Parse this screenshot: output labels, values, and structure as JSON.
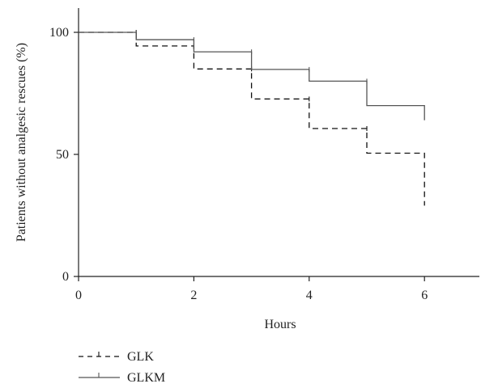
{
  "chart_data": {
    "type": "line",
    "subtype": "step (Kaplan-Meier)",
    "xlabel": "Hours",
    "ylabel": "Patients without analgesic rescues (%)",
    "xlim": [
      0,
      7
    ],
    "ylim": [
      0,
      110
    ],
    "xticks": [
      0,
      2,
      4,
      6
    ],
    "yticks": [
      0,
      50,
      100
    ],
    "grid": false,
    "legend_position": "bottom-left",
    "series": [
      {
        "name": "GLK",
        "line_style": "dashed",
        "color": "#111111",
        "x": [
          0,
          1,
          2,
          3,
          4,
          5,
          6
        ],
        "y": [
          100,
          94.4,
          85,
          72.7,
          60.6,
          50.5,
          50.5
        ],
        "final_drop_to": 29
      },
      {
        "name": "GLKM",
        "line_style": "solid",
        "color": "#555555",
        "x": [
          0,
          1,
          2,
          3,
          4,
          5,
          6
        ],
        "y": [
          100,
          97,
          92,
          84.8,
          80,
          70,
          70
        ],
        "final_drop_to": 64
      }
    ]
  }
}
